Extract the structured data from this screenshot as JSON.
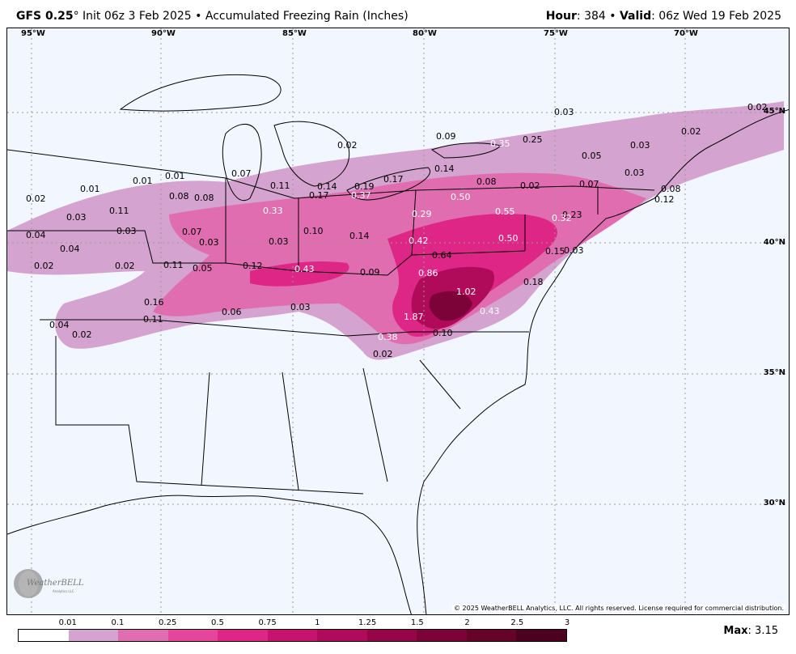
{
  "header": {
    "model": "GFS 0.25",
    "degree": "°",
    "init": " Init 06z 3 Feb 2025",
    "separator": " • ",
    "product": "Accumulated Freezing Rain (Inches)",
    "hour_label": "Hour",
    "hour_value": ": 384",
    "valid_label": "Valid",
    "valid_value": ": 06z Wed 19 Feb 2025"
  },
  "map": {
    "lon_labels": [
      "95°W",
      "90°W",
      "85°W",
      "80°W",
      "75°W",
      "70°W"
    ],
    "lat_labels": [
      "45°N",
      "40°N",
      "35°N",
      "30°N"
    ],
    "values": [
      {
        "text": "0.01",
        "light": false
      },
      {
        "text": "0.01",
        "light": false
      },
      {
        "text": "0.01",
        "light": false
      },
      {
        "text": "0.02",
        "light": false
      },
      {
        "text": "0.03",
        "light": false
      },
      {
        "text": "0.04",
        "light": false
      },
      {
        "text": "0.04",
        "light": false
      },
      {
        "text": "0.02",
        "light": false
      },
      {
        "text": "0.11",
        "light": false
      },
      {
        "text": "0.03",
        "light": false
      },
      {
        "text": "0.08",
        "light": false
      },
      {
        "text": "0.08",
        "light": false
      },
      {
        "text": "0.07",
        "light": false
      },
      {
        "text": "0.03",
        "light": false
      },
      {
        "text": "0.02",
        "light": false
      },
      {
        "text": "0.11",
        "light": false
      },
      {
        "text": "0.05",
        "light": false
      },
      {
        "text": "0.12",
        "light": false
      },
      {
        "text": "0.07",
        "light": false
      },
      {
        "text": "0.11",
        "light": false
      },
      {
        "text": "0.33",
        "light": true
      },
      {
        "text": "0.03",
        "light": false
      },
      {
        "text": "0.10",
        "light": false
      },
      {
        "text": "0.14",
        "light": false
      },
      {
        "text": "0.17",
        "light": false
      },
      {
        "text": "0.37",
        "light": true
      },
      {
        "text": "0.19",
        "light": false
      },
      {
        "text": "0.17",
        "light": false
      },
      {
        "text": "0.14",
        "light": false
      },
      {
        "text": "0.14",
        "light": false
      },
      {
        "text": "0.02",
        "light": false
      },
      {
        "text": "0.09",
        "light": false
      },
      {
        "text": "0.35",
        "light": true
      },
      {
        "text": "0.25",
        "light": false
      },
      {
        "text": "0.03",
        "light": false
      },
      {
        "text": "0.05",
        "light": false
      },
      {
        "text": "0.03",
        "light": false
      },
      {
        "text": "0.03",
        "light": false
      },
      {
        "text": "0.02",
        "light": false
      },
      {
        "text": "0.02",
        "light": false
      },
      {
        "text": "0.08",
        "light": false
      },
      {
        "text": "0.02",
        "light": false
      },
      {
        "text": "0.07",
        "light": false
      },
      {
        "text": "0.08",
        "light": false
      },
      {
        "text": "0.12",
        "light": false
      },
      {
        "text": "0.50",
        "light": true
      },
      {
        "text": "0.55",
        "light": true
      },
      {
        "text": "0.29",
        "light": true
      },
      {
        "text": "0.23",
        "light": false
      },
      {
        "text": "0.32",
        "light": true
      },
      {
        "text": "0.42",
        "light": true
      },
      {
        "text": "0.50",
        "light": true
      },
      {
        "text": "0.15",
        "light": false
      },
      {
        "text": "0.03",
        "light": false
      },
      {
        "text": "0.64",
        "light": false
      },
      {
        "text": "0.43",
        "light": true
      },
      {
        "text": "0.09",
        "light": false
      },
      {
        "text": "0.86",
        "light": true
      },
      {
        "text": "0.18",
        "light": false
      },
      {
        "text": "1.02",
        "light": true
      },
      {
        "text": "0.16",
        "light": false
      },
      {
        "text": "0.06",
        "light": false
      },
      {
        "text": "0.03",
        "light": false
      },
      {
        "text": "0.43",
        "light": true
      },
      {
        "text": "1.87",
        "light": true
      },
      {
        "text": "0.11",
        "light": false
      },
      {
        "text": "0.04",
        "light": false
      },
      {
        "text": "0.02",
        "light": false
      },
      {
        "text": "0.38",
        "light": true
      },
      {
        "text": "0.10",
        "light": false
      },
      {
        "text": "0.02",
        "light": false
      }
    ],
    "copyright": "© 2025 WeatherBELL Analytics, LLC. All rights reserved. License required for commercial distribution.",
    "logo_text": "WeatherBELL",
    "logo_subtext": "Analytics LLC"
  },
  "legend": {
    "ticks": [
      "0.01",
      "0.1",
      "0.25",
      "0.5",
      "0.75",
      "1",
      "1.25",
      "1.5",
      "2",
      "2.5",
      "3"
    ],
    "colors": [
      "#ffffff",
      "#d4a3cf",
      "#e16db1",
      "#e4469b",
      "#dd2686",
      "#c7136d",
      "#b00a5a",
      "#960547",
      "#7c0338",
      "#650329",
      "#4d0120"
    ]
  },
  "max": {
    "label": "Max",
    "value": ": 3.15"
  }
}
